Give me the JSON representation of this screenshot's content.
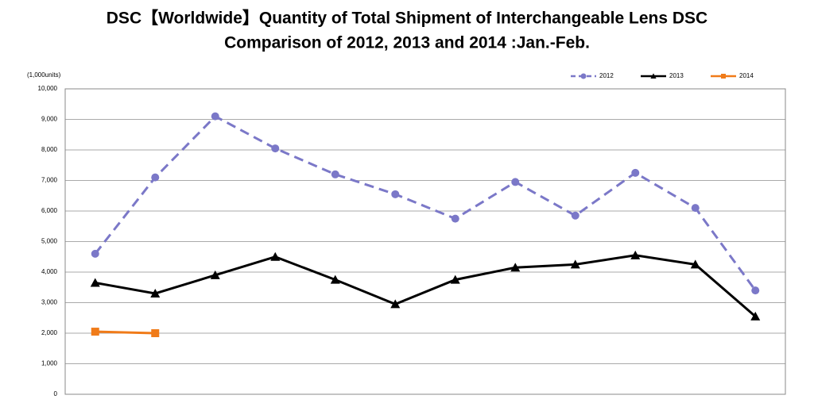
{
  "chart_data": {
    "type": "line",
    "title": [
      "DSC【Worldwide】Quantity of Total Shipment of Interchangeable Lens DSC",
      "Comparison of 2012, 2013 and 2014 :Jan.-Feb."
    ],
    "y_label": "(1,000units)",
    "categories": [
      null,
      null,
      null,
      null,
      null,
      null,
      null,
      null,
      null,
      null,
      null,
      null
    ],
    "series": [
      {
        "name": "2012",
        "color": "#7b78c8",
        "marker": "circle",
        "dashed": true,
        "values": [
          4600,
          7100,
          9100,
          8050,
          7200,
          6550,
          5750,
          6950,
          5850,
          7250,
          6100,
          3400
        ]
      },
      {
        "name": "2013",
        "color": "#000000",
        "marker": "triangle",
        "dashed": false,
        "values": [
          3650,
          3300,
          3900,
          4500,
          3750,
          2950,
          3750,
          4150,
          4250,
          4550,
          4250,
          2550
        ]
      },
      {
        "name": "2014",
        "color": "#f07b19",
        "marker": "square",
        "dashed": false,
        "values": [
          2050,
          2000,
          null,
          null,
          null,
          null,
          null,
          null,
          null,
          null,
          null,
          null
        ]
      }
    ],
    "ylim": [
      0,
      10000
    ],
    "yticks": [
      0,
      {
        "value": 1000,
        "label": "1,000"
      },
      {
        "value": 2000,
        "label": "2,000"
      },
      {
        "value": 3000,
        "label": "3,000"
      },
      {
        "value": 4000,
        "label": "4,000"
      },
      {
        "value": 5000,
        "label": "5,000"
      },
      {
        "value": 6000,
        "label": "6,000"
      },
      {
        "value": 7000,
        "label": "7,000"
      },
      {
        "value": 8000,
        "label": "8,000"
      },
      {
        "value": 9000,
        "label": "9,000"
      },
      {
        "value": 10000,
        "label": "10,000"
      }
    ],
    "grid": true,
    "legend": "top-right"
  }
}
